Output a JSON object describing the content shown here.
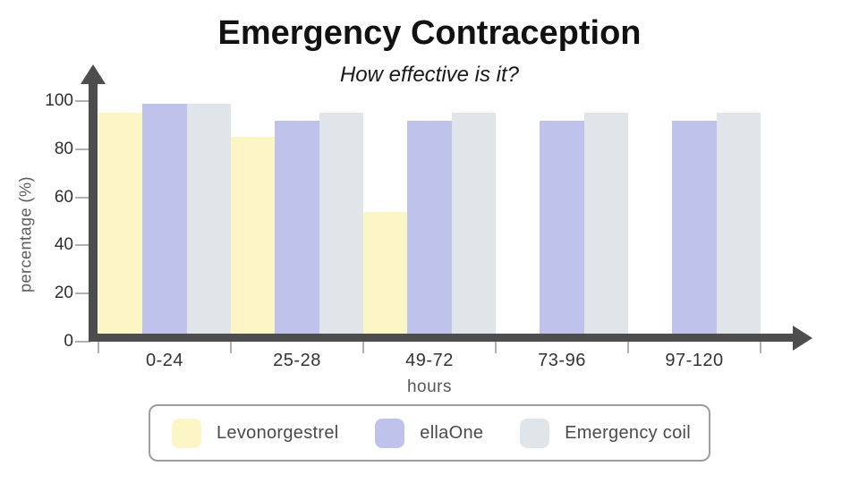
{
  "title": "Emergency Contraception",
  "subtitle": "How effective is it?",
  "chart_data": {
    "type": "bar",
    "title": "Emergency Contraception",
    "subtitle": "How effective is it?",
    "categories": [
      "0-24",
      "25-28",
      "49-72",
      "73-96",
      "97-120"
    ],
    "series": [
      {
        "name": "Levonorgestrel",
        "color": "#fcf6c6",
        "values": [
          95,
          85,
          54,
          null,
          null
        ]
      },
      {
        "name": "ellaOne",
        "color": "#bfc3ec",
        "values": [
          99,
          92,
          92,
          92,
          92
        ]
      },
      {
        "name": "Emergency coil",
        "color": "#e0e5ea",
        "values": [
          99,
          95,
          95,
          95,
          95
        ]
      }
    ],
    "xlabel": "hours",
    "ylabel": "percentage (%)",
    "ylim": [
      0,
      100
    ],
    "yticks": [
      0,
      20,
      40,
      60,
      80,
      100
    ],
    "ytick_labels": [
      "0",
      "20",
      "40",
      "60",
      "80",
      "100"
    ],
    "grid": false,
    "legend_position": "bottom",
    "axis_color": "#4d4d4d",
    "tick_color": "#b0b0b0"
  }
}
